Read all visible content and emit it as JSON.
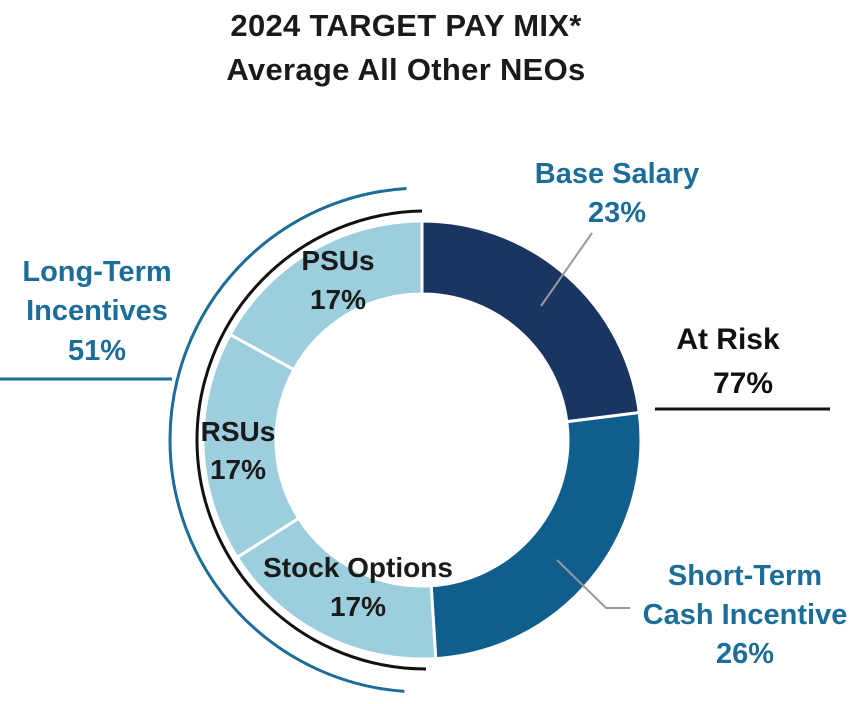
{
  "chart_data": {
    "type": "pie",
    "variant": "donut",
    "title": "2024 TARGET PAY MIX*",
    "subtitle": "Average All Other NEOs",
    "slices": [
      {
        "label": "Base Salary",
        "value": 23,
        "value_label": "23%",
        "color": "#1b3563"
      },
      {
        "label": "Short-Term Cash Incentive",
        "label_lines": [
          "Short-Term",
          "Cash Incentive"
        ],
        "value": 26,
        "value_label": "26%",
        "color": "#0f5e8e"
      },
      {
        "label": "Stock Options",
        "value": 17,
        "value_label": "17%",
        "color": "#9ccedd"
      },
      {
        "label": "RSUs",
        "value": 17,
        "value_label": "17%",
        "color": "#9ccedd"
      },
      {
        "label": "PSUs",
        "value": 17,
        "value_label": "17%",
        "color": "#9ccedd"
      }
    ],
    "groups": [
      {
        "label": "Long-Term Incentives",
        "label_lines": [
          "Long-Term",
          "Incentives"
        ],
        "value": 51,
        "value_label": "51%",
        "color": "#1c6d97"
      },
      {
        "label": "At Risk",
        "value": 77,
        "value_label": "77%",
        "color": "#111111"
      }
    ],
    "label_color": "#1c6d97",
    "inner_label_color": "#1a1a1a"
  }
}
